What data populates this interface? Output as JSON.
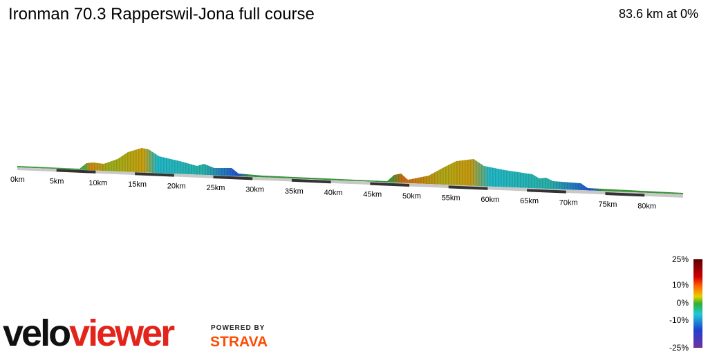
{
  "header": {
    "title": "Ironman 70.3 Rapperswil-Jona full course",
    "summary": "83.6 km at 0%"
  },
  "distance_markers": [
    "0km",
    "5km",
    "10km",
    "15km",
    "20km",
    "25km",
    "30km",
    "35km",
    "40km",
    "45km",
    "50km",
    "55km",
    "60km",
    "65km",
    "70km",
    "75km",
    "80km"
  ],
  "gradient_legend": [
    "25%",
    "10%",
    "0%",
    "-10%",
    "-25%"
  ],
  "branding": {
    "logo_first": "velo",
    "logo_second": "viewer",
    "powered_by": "POWERED BY",
    "partner": "STRAVA"
  }
}
